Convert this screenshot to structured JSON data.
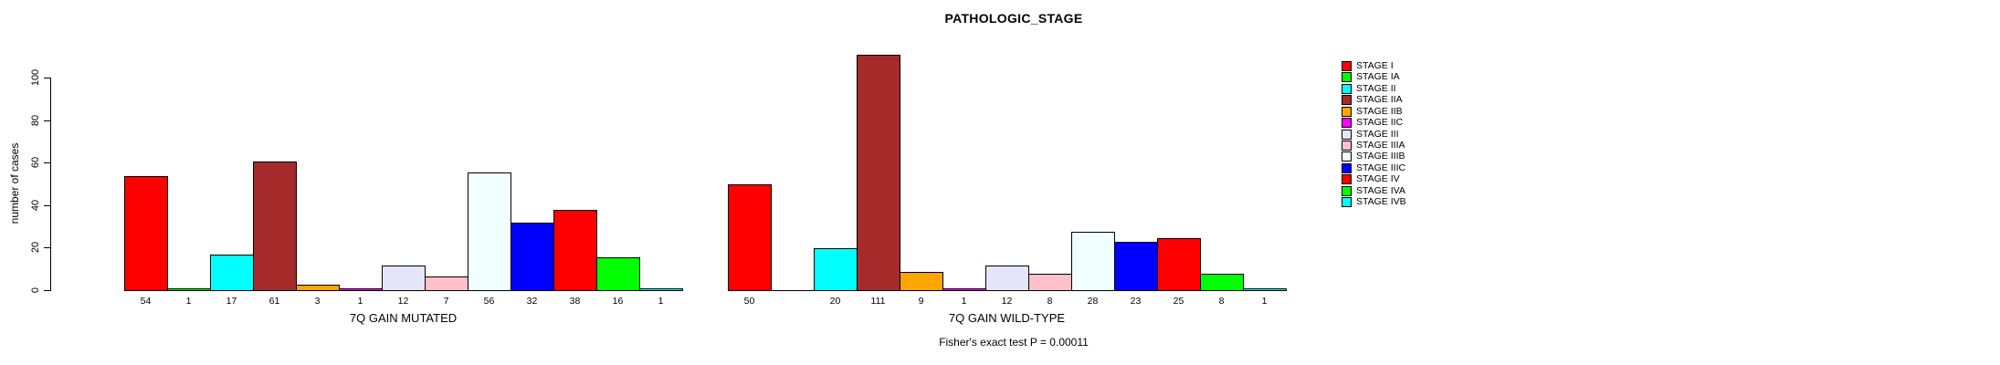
{
  "chart_data": {
    "type": "bar",
    "title": "PATHOLOGIC_STAGE",
    "ylabel": "number of cases",
    "xlabel": "",
    "ylim": [
      0,
      100
    ],
    "yticks": [
      0,
      20,
      40,
      60,
      80,
      100
    ],
    "grid": false,
    "legend_position": "right",
    "annotation": "Fisher's exact test P = 0.00011",
    "categories": [
      "STAGE I",
      "STAGE IA",
      "STAGE II",
      "STAGE IIA",
      "STAGE IIB",
      "STAGE IIC",
      "STAGE III",
      "STAGE IIIA",
      "STAGE IIIB",
      "STAGE IIIC",
      "STAGE IV",
      "STAGE IVA",
      "STAGE IVB"
    ],
    "palette": [
      "#FF0000",
      "#00FF00",
      "#00FFFF",
      "#A52A2A",
      "#FFA500",
      "#FF00FF",
      "#E6E6FA",
      "#FFC0CB",
      "#F0FFFF",
      "#0000FF",
      "#FF0000",
      "#00FF00",
      "#00FFFF"
    ],
    "groups": [
      {
        "label": "7Q GAIN MUTATED",
        "values": [
          54,
          1,
          17,
          61,
          3,
          1,
          12,
          7,
          56,
          32,
          38,
          16,
          1
        ]
      },
      {
        "label": "7Q GAIN WILD-TYPE",
        "values": [
          50,
          0,
          20,
          111,
          9,
          1,
          12,
          8,
          28,
          23,
          25,
          8,
          1
        ]
      }
    ]
  }
}
